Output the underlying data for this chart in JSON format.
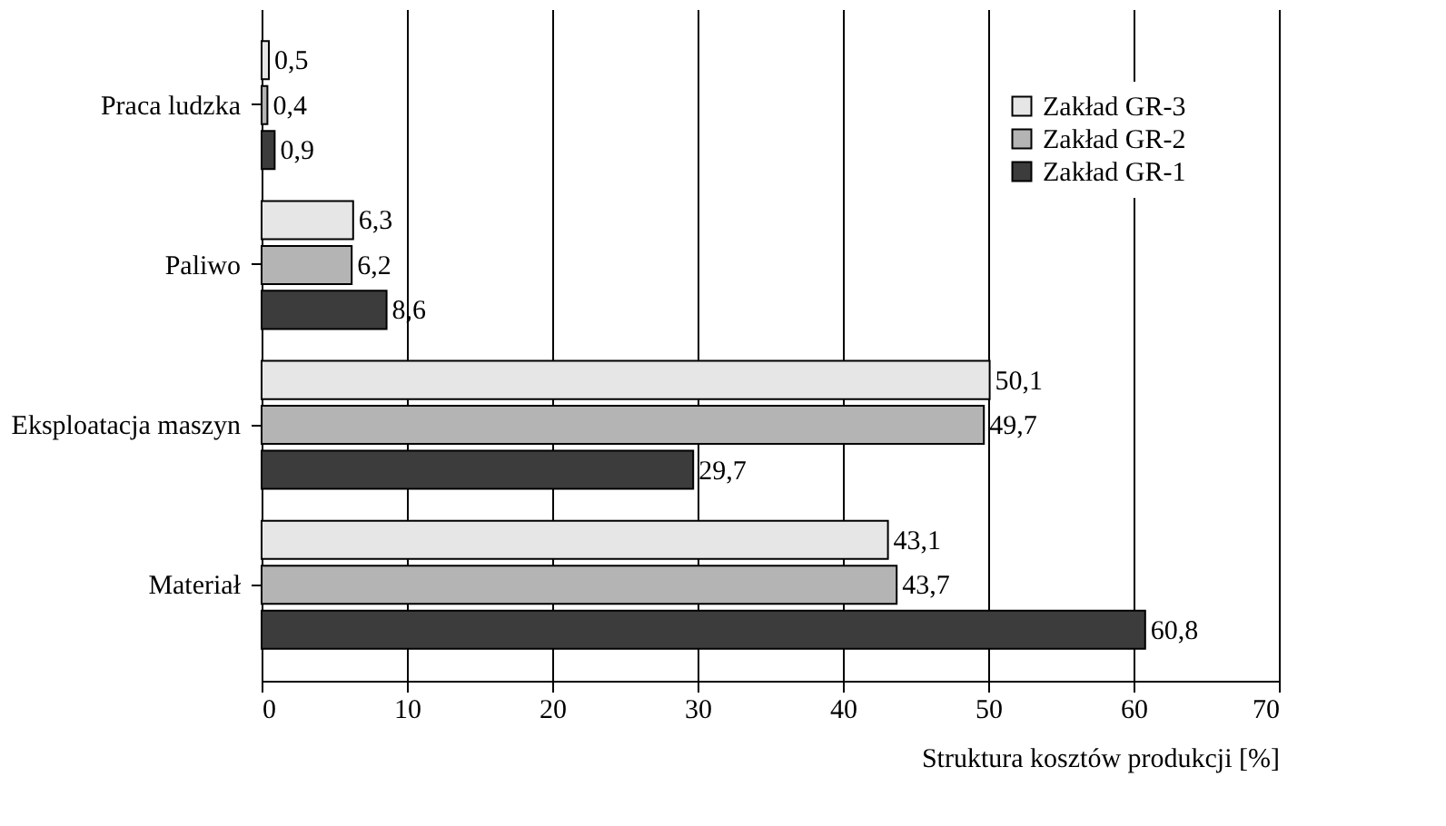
{
  "chart_data": {
    "type": "bar",
    "orientation": "horizontal",
    "xlabel": "Struktura kosztów produkcji  [%]",
    "categories": [
      "Praca ludzka",
      "Paliwo",
      "Eksploatacja maszyn",
      "Materiał"
    ],
    "series": [
      {
        "name": "Zakład GR-3",
        "color": "#e6e6e6",
        "values": [
          0.5,
          6.3,
          50.1,
          43.1
        ],
        "value_labels": [
          "0,5",
          "6,3",
          "50,1",
          "43,1"
        ]
      },
      {
        "name": "Zakład GR-2",
        "color": "#b4b4b4",
        "values": [
          0.4,
          6.2,
          49.7,
          43.7
        ],
        "value_labels": [
          "0,4",
          "6,2",
          "49,7",
          "43,7"
        ]
      },
      {
        "name": "Zakład GR-1",
        "color": "#3c3c3c",
        "values": [
          0.9,
          8.6,
          29.7,
          60.8
        ],
        "value_labels": [
          "0,9",
          "8,6",
          "29,7",
          "60,8"
        ]
      }
    ],
    "xlim": [
      0,
      70
    ],
    "xticks": [
      0,
      10,
      20,
      30,
      40,
      50,
      60,
      70
    ],
    "grid": "x",
    "legend": "top right"
  }
}
